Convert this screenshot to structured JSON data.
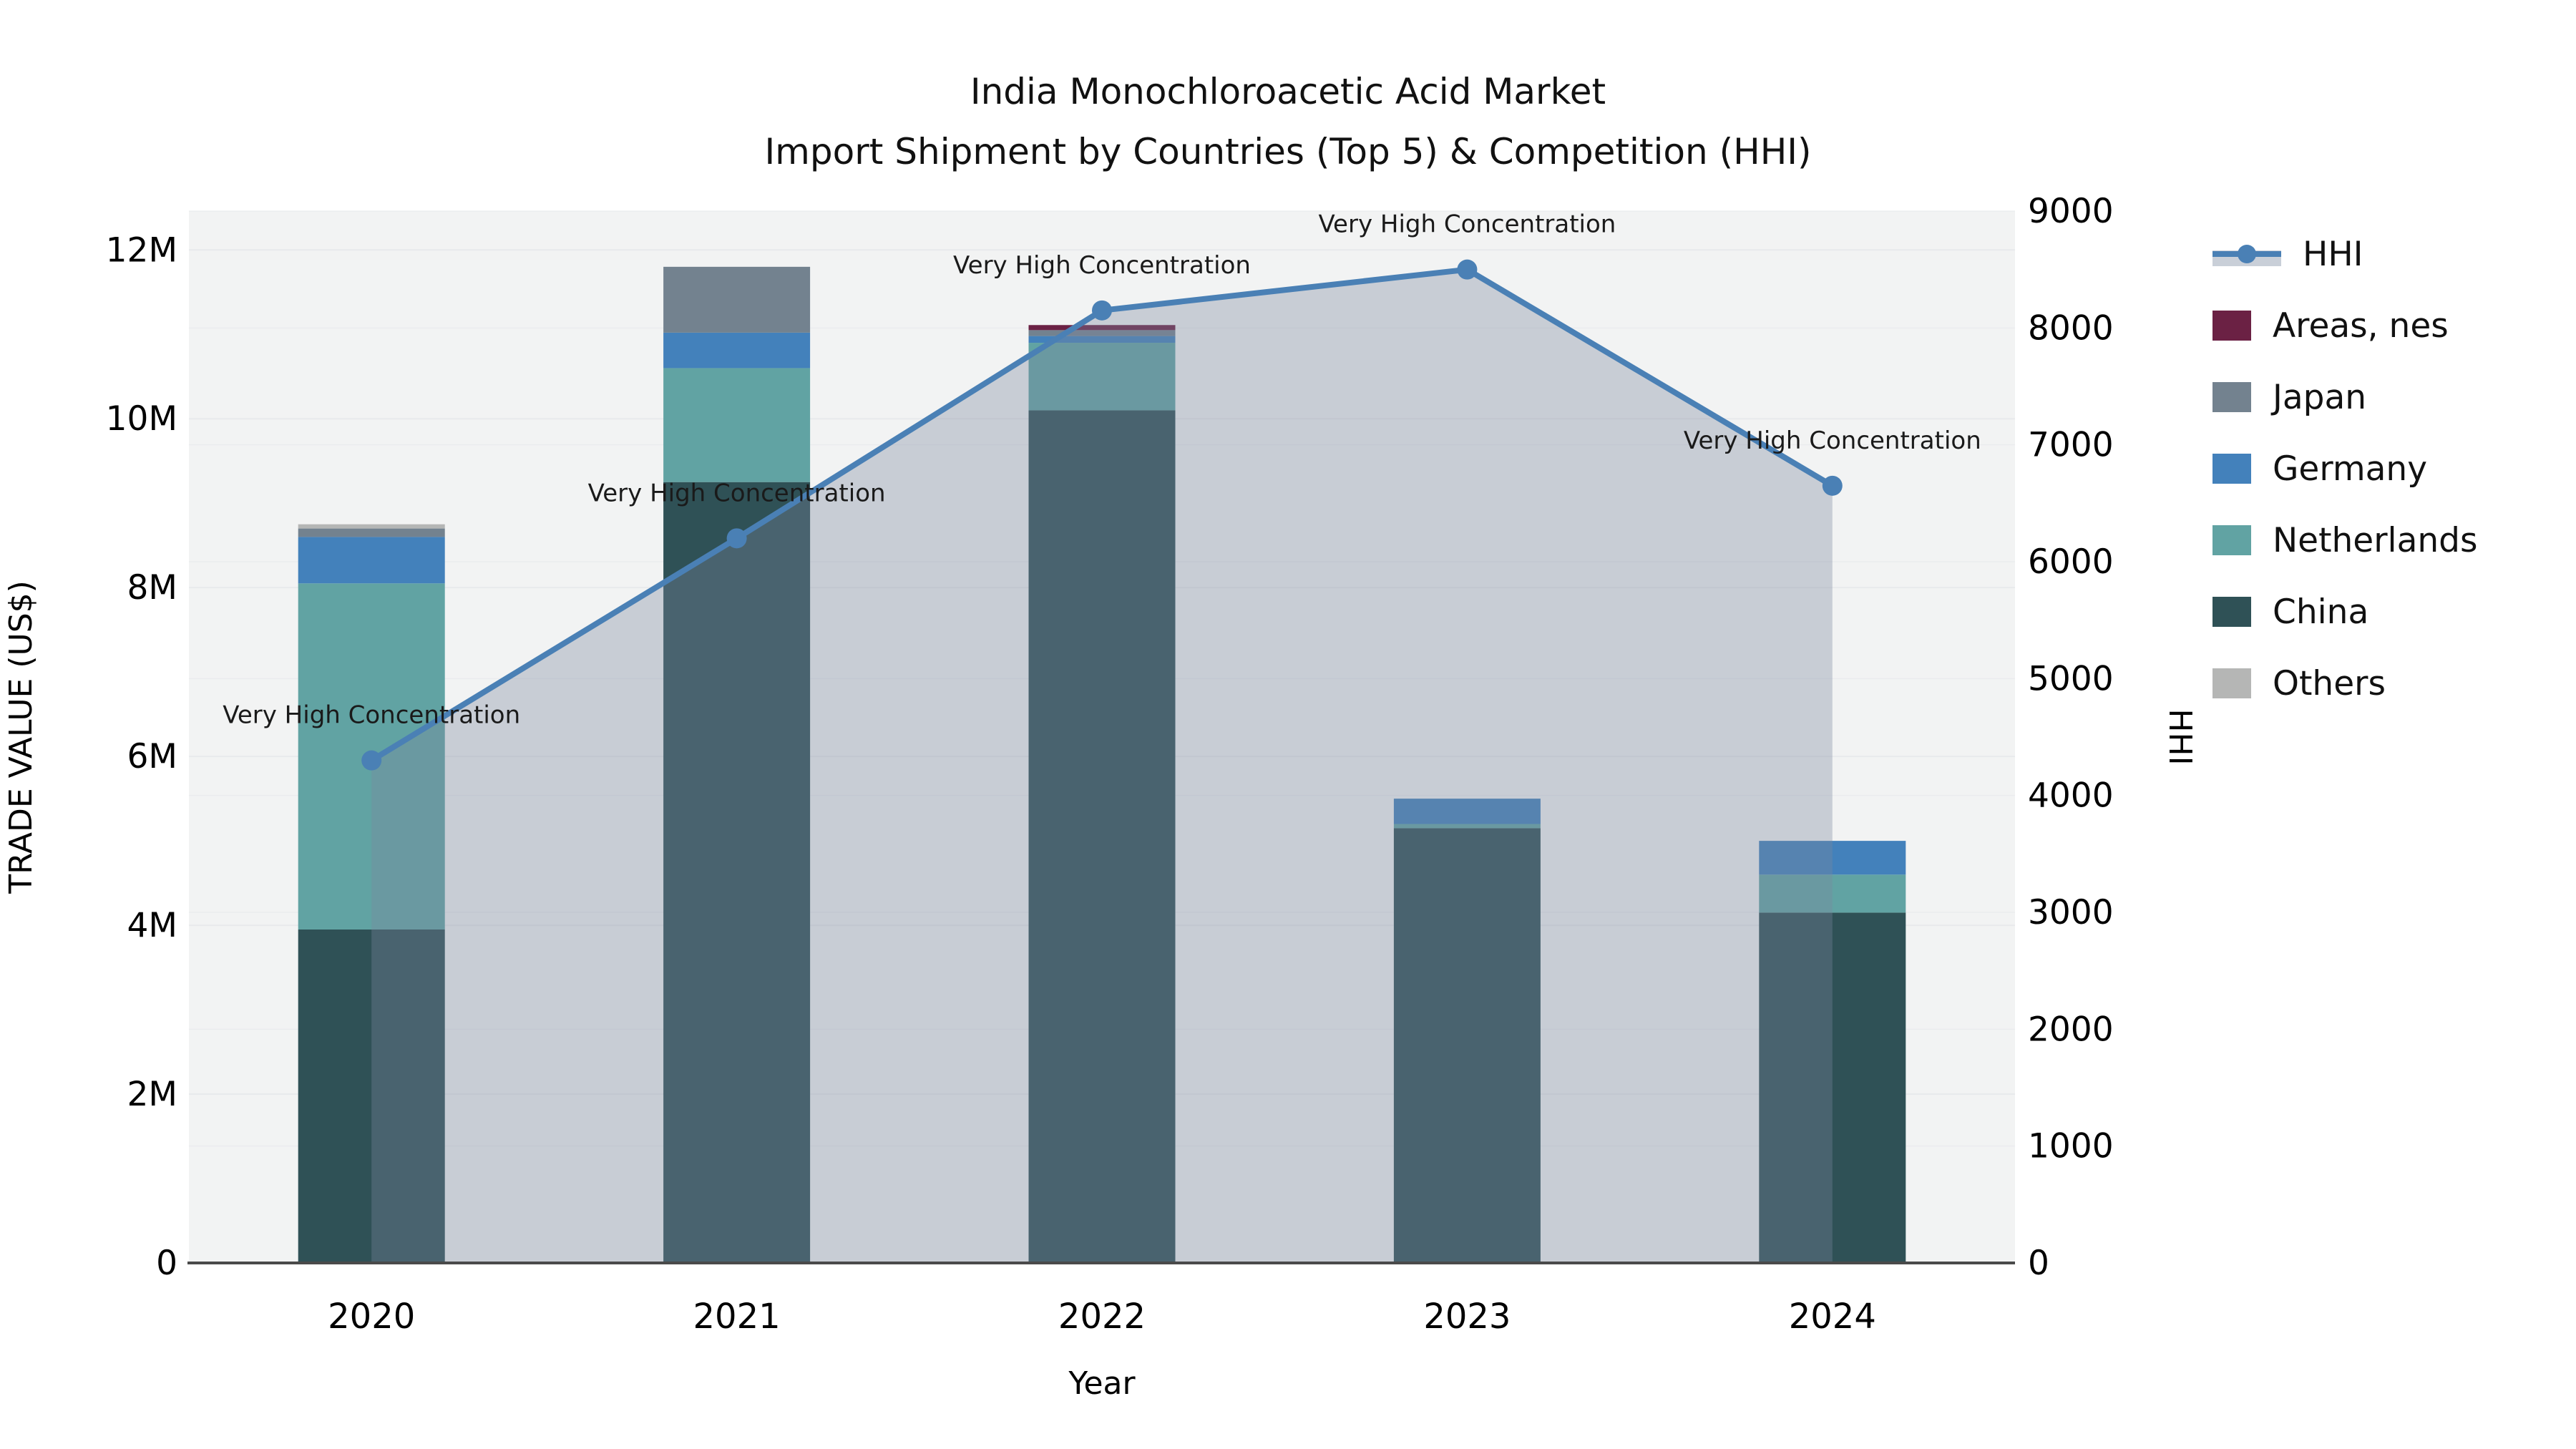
{
  "title": {
    "line1": "India Monochloroacetic Acid Market",
    "line2": "Import Shipment by Countries (Top 5) & Competition (HHI)"
  },
  "legend": {
    "position": "right",
    "items": [
      {
        "label": "HHI",
        "color": "#4a80b5",
        "type": "line"
      },
      {
        "label": "Areas, nes",
        "color": "#6b2144",
        "type": "swatch"
      },
      {
        "label": "Japan",
        "color": "#73828f",
        "type": "swatch"
      },
      {
        "label": "Germany",
        "color": "#4381bb",
        "type": "swatch"
      },
      {
        "label": "Netherlands",
        "color": "#61a3a3",
        "type": "swatch"
      },
      {
        "label": "China",
        "color": "#2f5156",
        "type": "swatch"
      },
      {
        "label": "Others",
        "color": "#b5b6b5",
        "type": "swatch"
      }
    ]
  },
  "chart_data": {
    "type": "bar",
    "subtype": "stacked-bars-with-line-area-overlay",
    "categories": [
      "2020",
      "2021",
      "2022",
      "2023",
      "2024"
    ],
    "bar_unit": "US$ millions",
    "series": [
      {
        "name": "China",
        "color": "#2f5156",
        "values": [
          3.95,
          9.25,
          10.1,
          5.15,
          4.15
        ]
      },
      {
        "name": "Netherlands",
        "color": "#61a3a3",
        "values": [
          4.1,
          1.35,
          0.8,
          0.05,
          0.45
        ]
      },
      {
        "name": "Germany",
        "color": "#4381bb",
        "values": [
          0.55,
          0.42,
          0.08,
          0.3,
          0.4
        ]
      },
      {
        "name": "Japan",
        "color": "#73828f",
        "values": [
          0.1,
          0.78,
          0.07,
          0.0,
          0.0
        ]
      },
      {
        "name": "Areas, nes",
        "color": "#6b2144",
        "values": [
          0.0,
          0.0,
          0.06,
          0.0,
          0.0
        ]
      },
      {
        "name": "Others",
        "color": "#b5b6b5",
        "values": [
          0.05,
          0.0,
          0.0,
          0.0,
          0.0
        ]
      }
    ],
    "bar_totals_millions": [
      8.75,
      11.8,
      11.11,
      5.5,
      5.0
    ],
    "line_series": {
      "name": "HHI",
      "color": "#4a80b5",
      "fill_color": "rgba(122,136,158,0.35)",
      "values": [
        4300,
        6200,
        8150,
        8500,
        6650
      ],
      "point_annotations": [
        "Very High Concentration",
        "Very High Concentration",
        "Very High Concentration",
        "Very High Concentration",
        "Very High Concentration"
      ]
    },
    "x_axis": {
      "label": "Year"
    },
    "y_left": {
      "label": "TRADE VALUE (US$)",
      "tick_labels": [
        "0",
        "2M",
        "4M",
        "6M",
        "8M",
        "10M",
        "12M"
      ],
      "tick_values_millions": [
        0,
        2,
        4,
        6,
        8,
        10,
        12
      ],
      "range_millions": [
        0,
        12.46
      ]
    },
    "y_right": {
      "label": "HHI",
      "tick_labels": [
        "0",
        "1000",
        "2000",
        "3000",
        "4000",
        "5000",
        "6000",
        "7000",
        "8000",
        "9000"
      ],
      "tick_values": [
        0,
        1000,
        2000,
        3000,
        4000,
        5000,
        6000,
        7000,
        8000,
        9000
      ],
      "range": [
        0,
        9000
      ]
    },
    "grid": true,
    "plot_background": "#f2f3f3",
    "gridline_color": "#e8eaec",
    "axis_line_color": "#4a4a4a"
  }
}
